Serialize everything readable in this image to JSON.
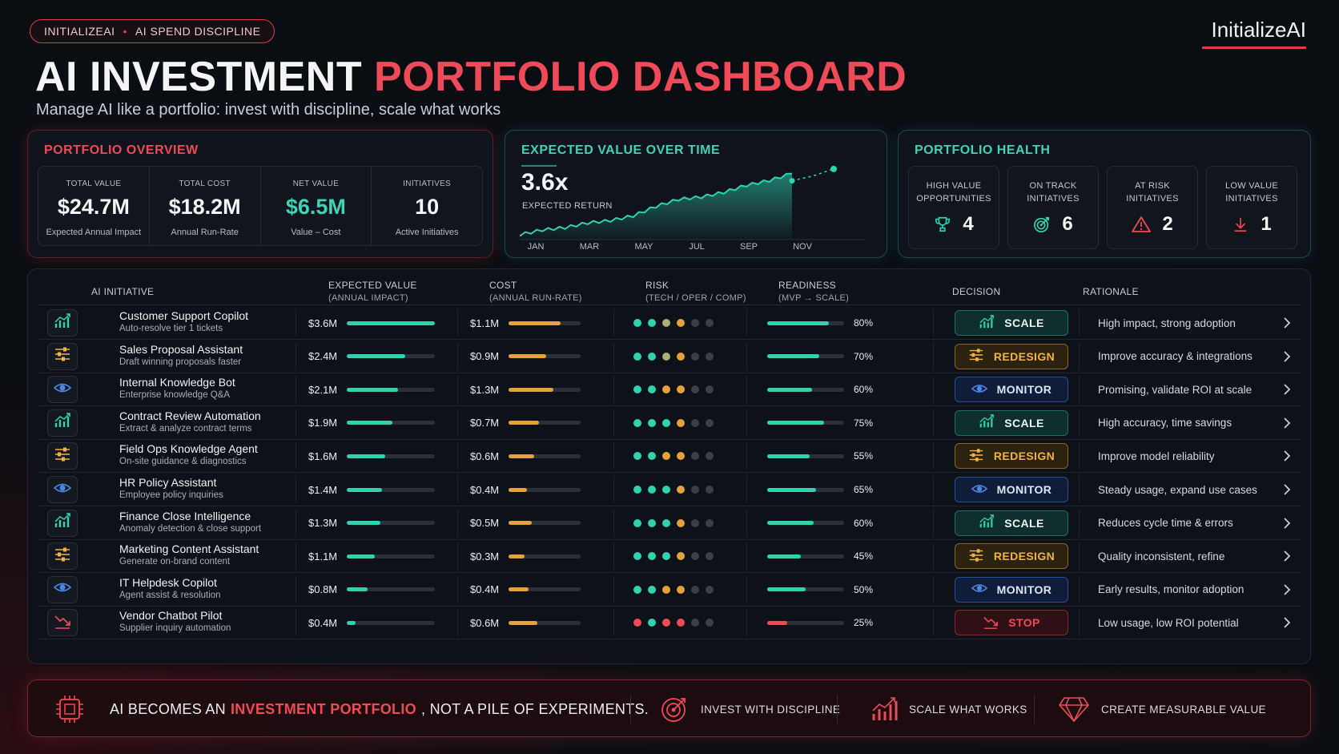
{
  "header": {
    "pill_brand": "INITIALIZEAI",
    "pill_sep": "•",
    "pill_topic": "AI SPEND DISCIPLINE",
    "brand": "InitializeAI",
    "title_white": "AI INVESTMENT",
    "title_red": "PORTFOLIO DASHBOARD",
    "subtitle": "Manage AI like a portfolio: invest with discipline, scale what works"
  },
  "overview": {
    "title": "PORTFOLIO OVERVIEW",
    "kpis": [
      {
        "label": "TOTAL VALUE",
        "value": "$24.7M",
        "sub": "Expected Annual Impact"
      },
      {
        "label": "TOTAL COST",
        "value": "$18.2M",
        "sub": "Annual Run-Rate"
      },
      {
        "label": "NET VALUE",
        "value": "$6.5M",
        "sub": "Value – Cost"
      },
      {
        "label": "INITIATIVES",
        "value": "10",
        "sub": "Active Initiatives"
      }
    ]
  },
  "expected_value": {
    "title": "EXPECTED VALUE OVER TIME",
    "value": "3.6x",
    "sub": "EXPECTED RETURN",
    "months": [
      "JAN",
      "MAR",
      "MAY",
      "JUL",
      "SEP",
      "NOV"
    ]
  },
  "chart_data": {
    "type": "area",
    "title": "EXPECTED VALUE OVER TIME",
    "x": [
      "JAN",
      "",
      "MAR",
      "",
      "MAY",
      "",
      "JUL",
      "",
      "SEP",
      "",
      "NOV",
      "",
      ""
    ],
    "series": [
      {
        "values": [
          1.0,
          1.2,
          1.3,
          1.5,
          1.6,
          1.8,
          2.2,
          2.5,
          2.6,
          2.8,
          3.1,
          3.3,
          3.6
        ]
      }
    ],
    "projection": [
      3.3,
      3.5,
      3.8
    ],
    "ylim": [
      0.8,
      4.0
    ],
    "colors": {
      "line": "#2fd3b0",
      "projection": "#2fd3b0"
    }
  },
  "health": {
    "title": "PORTFOLIO HEALTH",
    "items": [
      {
        "label1": "HIGH VALUE",
        "label2": "OPPORTUNITIES",
        "value": "4",
        "icon": "trophy-icon"
      },
      {
        "label1": "ON TRACK",
        "label2": "INITIATIVES",
        "value": "6",
        "icon": "target-icon"
      },
      {
        "label1": "AT RISK",
        "label2": "INITIATIVES",
        "value": "2",
        "icon": "warning-icon"
      },
      {
        "label1": "LOW VALUE",
        "label2": "INITIATIVES",
        "value": "1",
        "icon": "arrow-down-icon"
      }
    ]
  },
  "table": {
    "headers": {
      "initiative": "AI INITIATIVE",
      "value": "EXPECTED VALUE",
      "value_sub": "(ANNUAL IMPACT)",
      "cost": "COST",
      "cost_sub": "(ANNUAL RUN-RATE)",
      "risk": "RISK",
      "risk_sub": "(TECH / OPER / COMP)",
      "readiness": "READINESS",
      "readiness_sub": "(MVP → SCALE)",
      "decision": "DECISION",
      "rationale": "RATIONALE"
    },
    "rows": [
      {
        "name": "Customer Support Copilot",
        "desc": "Auto-resolve tier 1 tickets",
        "value": "$3.6M",
        "value_frac": 1.0,
        "cost": "$1.1M",
        "cost_frac": 0.72,
        "risk": [
          "teal",
          "teal",
          "olive",
          "amber",
          "gray",
          "gray"
        ],
        "readiness": "80%",
        "readiness_frac": 0.8,
        "decision": "SCALE",
        "rationale": "High impact, strong adoption"
      },
      {
        "name": "Sales Proposal Assistant",
        "desc": "Draft winning proposals faster",
        "value": "$2.4M",
        "value_frac": 0.66,
        "cost": "$0.9M",
        "cost_frac": 0.52,
        "risk": [
          "teal",
          "teal",
          "olive",
          "amber",
          "gray",
          "gray"
        ],
        "readiness": "70%",
        "readiness_frac": 0.68,
        "decision": "REDESIGN",
        "rationale": "Improve accuracy & integrations"
      },
      {
        "name": "Internal Knowledge Bot",
        "desc": "Enterprise knowledge Q&A",
        "value": "$2.1M",
        "value_frac": 0.58,
        "cost": "$1.3M",
        "cost_frac": 0.62,
        "risk": [
          "teal",
          "teal",
          "amber",
          "amber",
          "gray",
          "gray"
        ],
        "readiness": "60%",
        "readiness_frac": 0.58,
        "decision": "MONITOR",
        "rationale": "Promising, validate ROI at scale"
      },
      {
        "name": "Contract Review Automation",
        "desc": "Extract & analyze contract terms",
        "value": "$1.9M",
        "value_frac": 0.52,
        "cost": "$0.7M",
        "cost_frac": 0.42,
        "risk": [
          "teal",
          "teal",
          "teal",
          "amber",
          "gray",
          "gray"
        ],
        "readiness": "75%",
        "readiness_frac": 0.74,
        "decision": "SCALE",
        "rationale": "High accuracy, time savings"
      },
      {
        "name": "Field Ops Knowledge Agent",
        "desc": "On-site guidance & diagnostics",
        "value": "$1.6M",
        "value_frac": 0.44,
        "cost": "$0.6M",
        "cost_frac": 0.36,
        "risk": [
          "teal",
          "teal",
          "amber",
          "amber",
          "gray",
          "gray"
        ],
        "readiness": "55%",
        "readiness_frac": 0.55,
        "decision": "REDESIGN",
        "rationale": "Improve model reliability"
      },
      {
        "name": "HR Policy Assistant",
        "desc": "Employee policy inquiries",
        "value": "$1.4M",
        "value_frac": 0.4,
        "cost": "$0.4M",
        "cost_frac": 0.26,
        "risk": [
          "teal",
          "teal",
          "teal",
          "amber",
          "gray",
          "gray"
        ],
        "readiness": "65%",
        "readiness_frac": 0.64,
        "decision": "MONITOR",
        "rationale": "Steady usage, expand use cases"
      },
      {
        "name": "Finance Close Intelligence",
        "desc": "Anomaly detection & close support",
        "value": "$1.3M",
        "value_frac": 0.38,
        "cost": "$0.5M",
        "cost_frac": 0.32,
        "risk": [
          "teal",
          "teal",
          "teal",
          "amber",
          "gray",
          "gray"
        ],
        "readiness": "60%",
        "readiness_frac": 0.6,
        "decision": "SCALE",
        "rationale": "Reduces cycle time & errors"
      },
      {
        "name": "Marketing Content Assistant",
        "desc": "Generate on-brand content",
        "value": "$1.1M",
        "value_frac": 0.32,
        "cost": "$0.3M",
        "cost_frac": 0.22,
        "risk": [
          "teal",
          "teal",
          "teal",
          "amber",
          "gray",
          "gray"
        ],
        "readiness": "45%",
        "readiness_frac": 0.44,
        "decision": "REDESIGN",
        "rationale": "Quality inconsistent, refine"
      },
      {
        "name": "IT Helpdesk Copilot",
        "desc": "Agent assist & resolution",
        "value": "$0.8M",
        "value_frac": 0.24,
        "cost": "$0.4M",
        "cost_frac": 0.28,
        "risk": [
          "teal",
          "teal",
          "amber",
          "amber",
          "gray",
          "gray"
        ],
        "readiness": "50%",
        "readiness_frac": 0.5,
        "decision": "MONITOR",
        "rationale": "Early results, monitor adoption"
      },
      {
        "name": "Vendor Chatbot Pilot",
        "desc": "Supplier inquiry automation",
        "value": "$0.4M",
        "value_frac": 0.1,
        "cost": "$0.6M",
        "cost_frac": 0.4,
        "risk": [
          "red",
          "teal",
          "red",
          "red",
          "gray",
          "gray"
        ],
        "readiness": "25%",
        "readiness_frac": 0.26,
        "decision": "STOP",
        "rationale": "Low usage, low ROI potential"
      }
    ]
  },
  "footer": {
    "main_1": "AI BECOMES AN",
    "main_hl": "INVESTMENT PORTFOLIO",
    "main_2": ", NOT A PILE OF EXPERIMENTS.",
    "item1": "INVEST WITH DISCIPLINE",
    "item2": "SCALE WHAT WORKS",
    "item3": "CREATE MEASURABLE VALUE"
  },
  "colors": {
    "accent_red": "#ef4a57",
    "accent_teal": "#2fd3b0",
    "amber": "#e6a23a",
    "blue": "#4a86e8",
    "gray": "#3a404b",
    "olive": "#a9b07a"
  }
}
